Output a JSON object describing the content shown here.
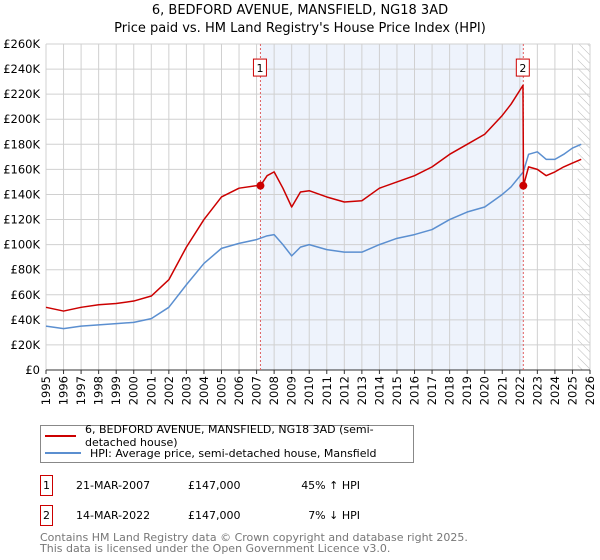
{
  "chart_data": {
    "type": "line",
    "title": "6, BEDFORD AVENUE, MANSFIELD, NG18 3AD",
    "subtitle": "Price paid vs. HM Land Registry's House Price Index (HPI)",
    "xlim": [
      1995,
      2026
    ],
    "ylim": [
      0,
      260000
    ],
    "x_ticks": [
      "1995",
      "1996",
      "1997",
      "1998",
      "1999",
      "2000",
      "2001",
      "2002",
      "2003",
      "2004",
      "2005",
      "2006",
      "2007",
      "2008",
      "2009",
      "2010",
      "2011",
      "2012",
      "2013",
      "2014",
      "2015",
      "2016",
      "2017",
      "2018",
      "2019",
      "2020",
      "2021",
      "2022",
      "2023",
      "2024",
      "2025",
      "2026"
    ],
    "y_ticks": [
      {
        "v": 0,
        "label": "£0"
      },
      {
        "v": 20000,
        "label": "£20K"
      },
      {
        "v": 40000,
        "label": "£40K"
      },
      {
        "v": 60000,
        "label": "£60K"
      },
      {
        "v": 80000,
        "label": "£80K"
      },
      {
        "v": 100000,
        "label": "£100K"
      },
      {
        "v": 120000,
        "label": "£120K"
      },
      {
        "v": 140000,
        "label": "£140K"
      },
      {
        "v": 160000,
        "label": "£160K"
      },
      {
        "v": 180000,
        "label": "£180K"
      },
      {
        "v": 200000,
        "label": "£200K"
      },
      {
        "v": 220000,
        "label": "£220K"
      },
      {
        "v": 240000,
        "label": "£240K"
      },
      {
        "v": 260000,
        "label": "£260K"
      }
    ],
    "grid": true,
    "shaded_range": [
      2007.22,
      2022.2
    ],
    "hatched_from": 2025.3,
    "series": [
      {
        "name": "6, BEDFORD AVENUE, MANSFIELD, NG18 3AD (semi-detached house)",
        "color": "#cc0000",
        "x": [
          1995,
          1996,
          1997,
          1998,
          1999,
          2000,
          2001,
          2002,
          2003,
          2004,
          2005,
          2006,
          2007,
          2007.22,
          2007.6,
          2008,
          2008.5,
          2009,
          2009.5,
          2010,
          2011,
          2012,
          2013,
          2014,
          2015,
          2016,
          2017,
          2018,
          2019,
          2020,
          2021,
          2021.5,
          2022.18,
          2022.21,
          2022.5,
          2023,
          2023.5,
          2024,
          2024.5,
          2025,
          2025.5
        ],
        "y": [
          50000,
          47000,
          50000,
          52000,
          53000,
          55000,
          59000,
          72000,
          98000,
          120000,
          138000,
          145000,
          147000,
          147000,
          155000,
          158000,
          145000,
          130000,
          142000,
          143000,
          138000,
          134000,
          135000,
          145000,
          150000,
          155000,
          162000,
          172000,
          180000,
          188000,
          203000,
          212000,
          227000,
          147000,
          162000,
          160000,
          155000,
          158000,
          162000,
          165000,
          168000
        ]
      },
      {
        "name": "HPI: Average price, semi-detached house, Mansfield",
        "color": "#5b8fd0",
        "x": [
          1995,
          1996,
          1997,
          1998,
          1999,
          2000,
          2001,
          2002,
          2003,
          2004,
          2005,
          2006,
          2007,
          2007.6,
          2008,
          2008.5,
          2009,
          2009.5,
          2010,
          2011,
          2012,
          2013,
          2014,
          2015,
          2016,
          2017,
          2018,
          2019,
          2020,
          2021,
          2021.5,
          2022.2,
          2022.5,
          2023,
          2023.5,
          2024,
          2024.5,
          2025,
          2025.5
        ],
        "y": [
          35000,
          33000,
          35000,
          36000,
          37000,
          38000,
          41000,
          50000,
          68000,
          85000,
          97000,
          101000,
          104000,
          107000,
          108000,
          100000,
          91000,
          98000,
          100000,
          96000,
          94000,
          94000,
          100000,
          105000,
          108000,
          112000,
          120000,
          126000,
          130000,
          140000,
          146000,
          158000,
          172000,
          174000,
          168000,
          168000,
          172000,
          177000,
          180000
        ]
      }
    ],
    "annotations": [
      {
        "label": "1",
        "x": 2007.22,
        "y": 147000
      },
      {
        "label": "2",
        "x": 2022.2,
        "y": 147000
      }
    ]
  },
  "legend": {
    "property": "6, BEDFORD AVENUE, MANSFIELD, NG18 3AD (semi-detached house)",
    "hpi": "HPI: Average price, semi-detached house, Mansfield"
  },
  "sales": [
    {
      "num": "1",
      "date": "21-MAR-2007",
      "price": "£147,000",
      "pct": "45% ↑ HPI"
    },
    {
      "num": "2",
      "date": "14-MAR-2022",
      "price": "£147,000",
      "pct": "7% ↓ HPI"
    }
  ],
  "footer": {
    "line1": "Contains HM Land Registry data © Crown copyright and database right 2025.",
    "line2": "This data is licensed under the Open Government Licence v3.0."
  }
}
